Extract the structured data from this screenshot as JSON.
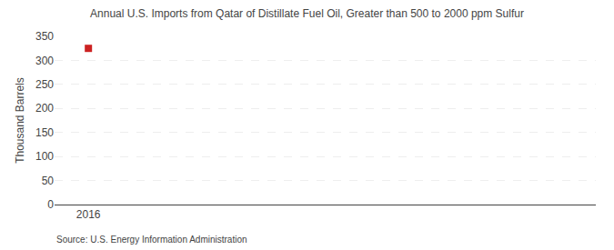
{
  "chart_data": {
    "type": "scatter",
    "title": "Annual U.S. Imports from Qatar of Distillate Fuel Oil, Greater than 500 to 2000 ppm Sulfur",
    "y_label": "Thousand Barrels",
    "annotations": [
      "Source: U.S. Energy Information Administration"
    ],
    "x": [
      2016
    ],
    "values": [
      325
    ],
    "color": "#cc2222",
    "marker": "square",
    "xlim": [
      2015.4,
      2025
    ],
    "xticks": [
      2016
    ],
    "ylim": [
      0,
      350
    ],
    "yticks": [
      0,
      50,
      100,
      150,
      200,
      250,
      300,
      350
    ],
    "grid": "y"
  }
}
